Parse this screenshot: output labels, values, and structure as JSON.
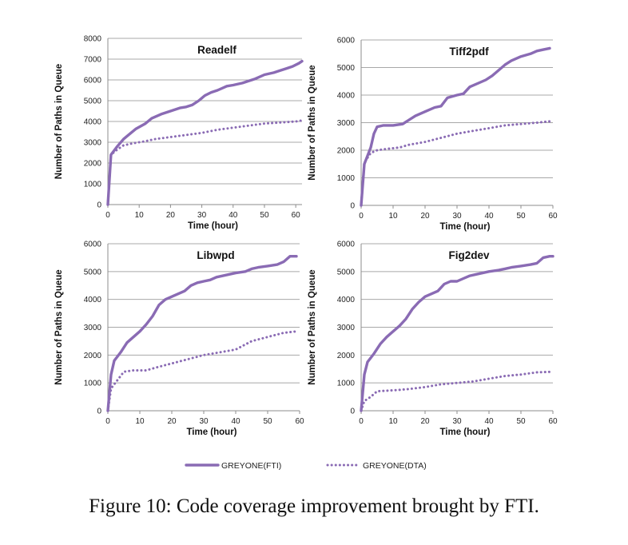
{
  "caption": "Figure 10: Code coverage improvement brought by FTI.",
  "legend": [
    {
      "label": "GREYONE(FTI)",
      "style": "solid"
    },
    {
      "label": "GREYONE(DTA)",
      "style": "dotted"
    }
  ],
  "colors": {
    "series": "#8a6bb4",
    "grid": "#a8a8a8",
    "axis": "#8c8c8c"
  },
  "chart_data": [
    {
      "type": "line",
      "title": "Readelf",
      "xlabel": "Time (hour)",
      "ylabel": "Number of Paths in Queue",
      "xlim": [
        0,
        62
      ],
      "ylim": [
        0,
        8000
      ],
      "xticks": [
        0,
        10,
        20,
        30,
        40,
        50,
        60
      ],
      "yticks": [
        0,
        1000,
        2000,
        3000,
        4000,
        5000,
        6000,
        7000,
        8000
      ],
      "grid": "horizontal",
      "series": [
        {
          "name": "GREYONE(FTI)",
          "style": "solid",
          "x": [
            0,
            1,
            3,
            5,
            7,
            9,
            12,
            14,
            17,
            20,
            23,
            25,
            27,
            29,
            31,
            33,
            35,
            38,
            40,
            43,
            45,
            47,
            50,
            53,
            55,
            57,
            59,
            61,
            62
          ],
          "y": [
            0,
            2400,
            2800,
            3150,
            3400,
            3650,
            3900,
            4150,
            4350,
            4500,
            4650,
            4700,
            4800,
            5000,
            5250,
            5400,
            5500,
            5700,
            5750,
            5850,
            5950,
            6050,
            6250,
            6350,
            6450,
            6550,
            6650,
            6800,
            6900
          ]
        },
        {
          "name": "GREYONE(DTA)",
          "style": "dotted",
          "x": [
            0,
            1,
            3,
            5,
            8,
            12,
            15,
            20,
            25,
            30,
            35,
            40,
            45,
            50,
            55,
            60,
            62
          ],
          "y": [
            0,
            2400,
            2650,
            2850,
            2950,
            3050,
            3150,
            3250,
            3350,
            3450,
            3600,
            3700,
            3800,
            3900,
            3950,
            4000,
            4050
          ]
        }
      ]
    },
    {
      "type": "line",
      "title": "Tiff2pdf",
      "xlabel": "Time (hour)",
      "ylabel": "Number of Paths in Queue",
      "xlim": [
        0,
        60
      ],
      "ylim": [
        0,
        6000
      ],
      "xticks": [
        0,
        10,
        20,
        30,
        40,
        50,
        60
      ],
      "yticks": [
        0,
        1000,
        2000,
        3000,
        4000,
        5000,
        6000
      ],
      "grid": "horizontal",
      "series": [
        {
          "name": "GREYONE(FTI)",
          "style": "solid",
          "x": [
            0,
            1,
            3,
            4,
            5,
            7,
            10,
            13,
            15,
            17,
            20,
            23,
            25,
            27,
            30,
            32,
            34,
            37,
            39,
            41,
            43,
            45,
            47,
            50,
            53,
            55,
            57,
            59
          ],
          "y": [
            0,
            1500,
            2100,
            2600,
            2850,
            2900,
            2900,
            2950,
            3100,
            3250,
            3400,
            3550,
            3600,
            3900,
            4000,
            4050,
            4300,
            4450,
            4550,
            4700,
            4900,
            5100,
            5250,
            5400,
            5500,
            5600,
            5650,
            5700
          ]
        },
        {
          "name": "GREYONE(DTA)",
          "style": "dotted",
          "x": [
            0,
            1,
            3,
            5,
            8,
            12,
            15,
            20,
            25,
            30,
            35,
            40,
            45,
            50,
            55,
            59
          ],
          "y": [
            0,
            1550,
            1900,
            2000,
            2050,
            2100,
            2200,
            2300,
            2450,
            2600,
            2700,
            2800,
            2900,
            2950,
            3000,
            3050
          ]
        }
      ]
    },
    {
      "type": "line",
      "title": "Libwpd",
      "xlabel": "Time (hour)",
      "ylabel": "Number of Paths in Queue",
      "xlim": [
        0,
        60
      ],
      "ylim": [
        0,
        6000
      ],
      "xticks": [
        0,
        10,
        20,
        30,
        40,
        50,
        60
      ],
      "yticks": [
        0,
        1000,
        2000,
        3000,
        4000,
        5000,
        6000
      ],
      "grid": "horizontal",
      "series": [
        {
          "name": "GREYONE(FTI)",
          "style": "solid",
          "x": [
            0,
            1,
            2,
            4,
            6,
            8,
            10,
            12,
            14,
            16,
            18,
            20,
            22,
            24,
            26,
            28,
            30,
            32,
            34,
            36,
            38,
            40,
            43,
            45,
            47,
            50,
            53,
            55,
            57,
            59
          ],
          "y": [
            0,
            1300,
            1800,
            2100,
            2450,
            2650,
            2850,
            3100,
            3400,
            3800,
            4000,
            4100,
            4200,
            4300,
            4500,
            4600,
            4650,
            4700,
            4800,
            4850,
            4900,
            4950,
            5000,
            5100,
            5150,
            5200,
            5250,
            5350,
            5550,
            5550
          ]
        },
        {
          "name": "GREYONE(DTA)",
          "style": "dotted",
          "x": [
            0,
            1,
            3,
            5,
            8,
            12,
            15,
            20,
            25,
            30,
            35,
            40,
            45,
            50,
            55,
            59
          ],
          "y": [
            0,
            800,
            1100,
            1400,
            1450,
            1450,
            1550,
            1700,
            1850,
            2000,
            2100,
            2200,
            2500,
            2650,
            2800,
            2850
          ]
        }
      ]
    },
    {
      "type": "line",
      "title": "Fig2dev",
      "xlabel": "Time (hour)",
      "ylabel": "Number of Paths in Queue",
      "xlim": [
        0,
        60
      ],
      "ylim": [
        0,
        6000
      ],
      "xticks": [
        0,
        10,
        20,
        30,
        40,
        50,
        60
      ],
      "yticks": [
        0,
        1000,
        2000,
        3000,
        4000,
        5000,
        6000
      ],
      "grid": "horizontal",
      "series": [
        {
          "name": "GREYONE(FTI)",
          "style": "solid",
          "x": [
            0,
            1,
            2,
            4,
            6,
            8,
            10,
            12,
            14,
            16,
            18,
            20,
            22,
            24,
            26,
            28,
            30,
            32,
            34,
            36,
            38,
            40,
            43,
            45,
            47,
            50,
            53,
            55,
            57,
            59,
            60
          ],
          "y": [
            0,
            1300,
            1750,
            2050,
            2400,
            2650,
            2850,
            3050,
            3300,
            3650,
            3900,
            4100,
            4200,
            4300,
            4550,
            4650,
            4650,
            4750,
            4850,
            4900,
            4950,
            5000,
            5050,
            5100,
            5150,
            5200,
            5250,
            5300,
            5500,
            5550,
            5550
          ]
        },
        {
          "name": "GREYONE(DTA)",
          "style": "dotted",
          "x": [
            0,
            1,
            3,
            5,
            8,
            12,
            15,
            20,
            25,
            30,
            35,
            40,
            45,
            50,
            55,
            60
          ],
          "y": [
            0,
            350,
            500,
            700,
            720,
            750,
            780,
            850,
            950,
            1000,
            1050,
            1150,
            1250,
            1300,
            1380,
            1400
          ]
        }
      ]
    }
  ]
}
